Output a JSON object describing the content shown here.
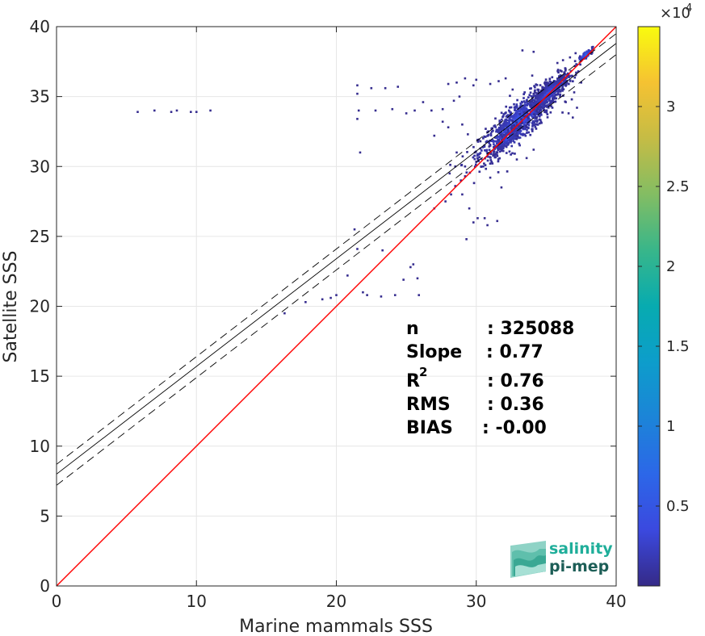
{
  "chart_data": {
    "type": "heatmap",
    "title": "",
    "xlabel": "Marine mammals SSS",
    "ylabel": "Satellite SSS",
    "xlim": [
      0,
      40
    ],
    "ylim": [
      0,
      40
    ],
    "xticks": [
      "0",
      "10",
      "20",
      "30",
      "40"
    ],
    "yticks": [
      "0",
      "5",
      "10",
      "15",
      "20",
      "25",
      "30",
      "35",
      "40"
    ],
    "grid": true,
    "colormap": "parula",
    "colorbar": {
      "range": [
        0,
        35000
      ],
      "ticks": [
        5000,
        10000,
        15000,
        20000,
        25000,
        30000
      ],
      "tick_labels": [
        "0.5",
        "1",
        "1.5",
        "2",
        "2.5",
        "3"
      ],
      "exponent": "4",
      "exponent_prefix": "×10"
    },
    "lines": {
      "identity": {
        "slope": 1,
        "intercept": 0,
        "color": "#ff0000"
      },
      "fit": {
        "slope": 0.77,
        "intercept": 8.0,
        "color": "#000000"
      },
      "fit_upper": {
        "slope": 0.77,
        "intercept": 8.7,
        "style": "dashed"
      },
      "fit_lower": {
        "slope": 0.77,
        "intercept": 7.2,
        "style": "dashed"
      }
    },
    "density_clusters": [
      {
        "x": 33.0,
        "y": 33.2,
        "sx": 1.4,
        "sy": 1.2,
        "n": 900,
        "value": 6000
      },
      {
        "x": 35.2,
        "y": 35.3,
        "sx": 0.7,
        "sy": 0.6,
        "n": 500,
        "value": 5000
      },
      {
        "x": 37.8,
        "y": 38.0,
        "sx": 0.25,
        "sy": 0.2,
        "n": 90,
        "value": 9000
      },
      {
        "x": 32.2,
        "y": 32.0,
        "sx": 0.5,
        "sy": 0.5,
        "n": 150,
        "value": 4000
      }
    ],
    "scatter_points": [
      [
        5.8,
        33.9
      ],
      [
        7.0,
        34.0
      ],
      [
        8.2,
        33.9
      ],
      [
        8.6,
        34.0
      ],
      [
        9.6,
        33.9
      ],
      [
        10.0,
        33.9
      ],
      [
        11.0,
        34.0
      ],
      [
        21.5,
        35.8
      ],
      [
        21.5,
        35.2
      ],
      [
        21.6,
        34.0
      ],
      [
        21.5,
        33.4
      ],
      [
        21.7,
        31.0
      ],
      [
        21.3,
        25.5
      ],
      [
        22.5,
        35.6
      ],
      [
        23.5,
        35.6
      ],
      [
        24.4,
        35.7
      ],
      [
        22.8,
        34.0
      ],
      [
        24.0,
        34.1
      ],
      [
        25.6,
        34.0
      ],
      [
        26.8,
        34.0
      ],
      [
        27.6,
        34.1
      ],
      [
        26.2,
        34.6
      ],
      [
        25.0,
        33.8
      ],
      [
        28.0,
        35.9
      ],
      [
        28.8,
        35.0
      ],
      [
        20.8,
        22.2
      ],
      [
        21.5,
        24.1
      ],
      [
        23.3,
        24.0
      ],
      [
        24.8,
        21.9
      ],
      [
        25.3,
        22.8
      ],
      [
        25.9,
        20.8
      ],
      [
        24.2,
        20.8
      ],
      [
        23.2,
        20.7
      ],
      [
        22.2,
        20.8
      ],
      [
        21.9,
        21.0
      ],
      [
        25.5,
        23.0
      ],
      [
        25.8,
        22.0
      ],
      [
        19.0,
        20.5
      ],
      [
        19.6,
        20.6
      ],
      [
        20.0,
        20.8
      ],
      [
        17.8,
        20.3
      ],
      [
        16.3,
        19.5
      ],
      [
        27.0,
        27.0
      ],
      [
        27.8,
        27.5
      ],
      [
        28.2,
        28.0
      ],
      [
        28.5,
        28.6
      ],
      [
        28.9,
        29.0
      ],
      [
        29.2,
        29.3
      ],
      [
        29.0,
        28.0
      ],
      [
        29.5,
        27.0
      ],
      [
        29.8,
        26.0
      ],
      [
        30.1,
        26.3
      ],
      [
        30.6,
        26.3
      ],
      [
        29.3,
        24.8
      ],
      [
        28.5,
        30.0
      ],
      [
        28.1,
        29.5
      ],
      [
        28.6,
        31.0
      ],
      [
        29.2,
        30.0
      ],
      [
        30.8,
        25.8
      ],
      [
        31.5,
        26.1
      ],
      [
        28.6,
        36.0
      ],
      [
        29.2,
        36.3
      ],
      [
        29.8,
        35.8
      ],
      [
        30.0,
        36.2
      ],
      [
        31.0,
        35.9
      ],
      [
        31.6,
        36.1
      ],
      [
        32.1,
        36.3
      ],
      [
        32.6,
        35.5
      ],
      [
        33.3,
        38.3
      ],
      [
        34.1,
        38.2
      ],
      [
        34.0,
        36.5
      ],
      [
        35.8,
        37.4
      ],
      [
        36.2,
        37.6
      ],
      [
        36.7,
        37.8
      ],
      [
        37.1,
        38.1
      ],
      [
        36.1,
        36.8
      ],
      [
        27.6,
        33.2
      ],
      [
        27.0,
        32.2
      ],
      [
        28.0,
        32.8
      ],
      [
        29.0,
        33.0
      ],
      [
        29.4,
        32.3
      ],
      [
        30.3,
        31.8
      ],
      [
        29.9,
        31.0
      ],
      [
        30.5,
        30.0
      ],
      [
        31.0,
        29.2
      ],
      [
        31.8,
        28.5
      ],
      [
        32.9,
        30.5
      ],
      [
        33.6,
        30.6
      ],
      [
        34.1,
        31.2
      ],
      [
        36.6,
        33.8
      ],
      [
        36.9,
        33.5
      ],
      [
        37.2,
        34.2
      ],
      [
        36.4,
        34.6
      ],
      [
        37.0,
        35.3
      ],
      [
        37.5,
        36.0
      ],
      [
        28.4,
        34.7
      ]
    ],
    "stats": {
      "label_n": "n",
      "value_n": ": 325088",
      "label_slope": "Slope",
      "value_slope": ": 0.77",
      "label_r2": "R",
      "label_r2_sup": "2",
      "value_r2": ": 0.76",
      "label_rms": "RMS",
      "value_rms": ": 0.36",
      "label_bias": "BIAS",
      "value_bias": ": -0.00"
    }
  },
  "logo": {
    "line1": "salinity",
    "line2": "pi-mep",
    "colors": {
      "line1": "#1fae9a",
      "line2": "#1d5e57"
    }
  }
}
